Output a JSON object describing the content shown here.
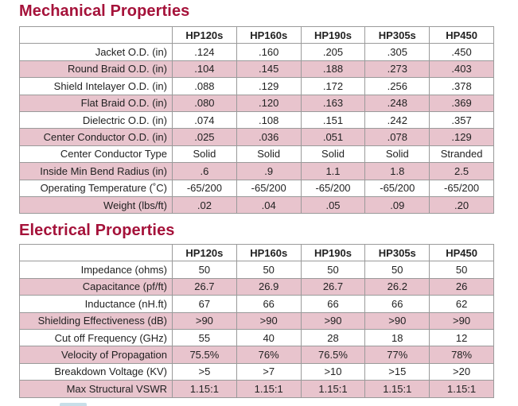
{
  "mechanical": {
    "title": "Mechanical Properties",
    "headers": [
      "HP120s",
      "HP160s",
      "HP190s",
      "HP305s",
      "HP450"
    ],
    "rows": [
      {
        "label": "Jacket O.D. (in)",
        "values": [
          ".124",
          ".160",
          ".205",
          ".305",
          ".450"
        ]
      },
      {
        "label": "Round Braid O.D. (in)",
        "values": [
          ".104",
          ".145",
          ".188",
          ".273",
          ".403"
        ]
      },
      {
        "label": "Shield Intelayer O.D. (in)",
        "values": [
          ".088",
          ".129",
          ".172",
          ".256",
          ".378"
        ]
      },
      {
        "label": "Flat Braid O.D. (in)",
        "values": [
          ".080",
          ".120",
          ".163",
          ".248",
          ".369"
        ]
      },
      {
        "label": "Dielectric O.D. (in)",
        "values": [
          ".074",
          ".108",
          ".151",
          ".242",
          ".357"
        ]
      },
      {
        "label": "Center Conductor O.D. (in)",
        "values": [
          ".025",
          ".036",
          ".051",
          ".078",
          ".129"
        ]
      },
      {
        "label": "Center Conductor Type",
        "values": [
          "Solid",
          "Solid",
          "Solid",
          "Solid",
          "Stranded"
        ]
      },
      {
        "label": "Inside Min Bend Radius (in)",
        "values": [
          ".6",
          ".9",
          "1.1",
          "1.8",
          "2.5"
        ]
      },
      {
        "label": "Operating Temperature (˚C)",
        "values": [
          "-65/200",
          "-65/200",
          "-65/200",
          "-65/200",
          "-65/200"
        ]
      },
      {
        "label": "Weight (lbs/ft)",
        "values": [
          ".02",
          ".04",
          ".05",
          ".09",
          ".20"
        ]
      }
    ]
  },
  "electrical": {
    "title": "Electrical Properties",
    "headers": [
      "HP120s",
      "HP160s",
      "HP190s",
      "HP305s",
      "HP450"
    ],
    "rows": [
      {
        "label": "Impedance (ohms)",
        "values": [
          "50",
          "50",
          "50",
          "50",
          "50"
        ]
      },
      {
        "label": "Capacitance (pf/ft)",
        "values": [
          "26.7",
          "26.9",
          "26.7",
          "26.2",
          "26"
        ]
      },
      {
        "label": "Inductance (nH.ft)",
        "values": [
          "67",
          "66",
          "66",
          "66",
          "62"
        ]
      },
      {
        "label": "Shielding Effectiveness (dB)",
        "values": [
          ">90",
          ">90",
          ">90",
          ">90",
          ">90"
        ]
      },
      {
        "label": "Cut off Frequency (GHz)",
        "values": [
          "55",
          "40",
          "28",
          "18",
          "12"
        ]
      },
      {
        "label": "Velocity of Propagation",
        "values": [
          "75.5%",
          "76%",
          "76.5%",
          "77%",
          "78%"
        ]
      },
      {
        "label": "Breakdown Voltage (KV)",
        "values": [
          ">5",
          ">7",
          ">10",
          ">15",
          ">20"
        ]
      },
      {
        "label": "Max Structural VSWR",
        "values": [
          "1.15:1",
          "1.15:1",
          "1.15:1",
          "1.15:1",
          "1.15:1"
        ]
      }
    ]
  },
  "colors": {
    "title": "#a5123a",
    "row_shade": "#e8c4cd",
    "border": "#9a9a9a"
  }
}
